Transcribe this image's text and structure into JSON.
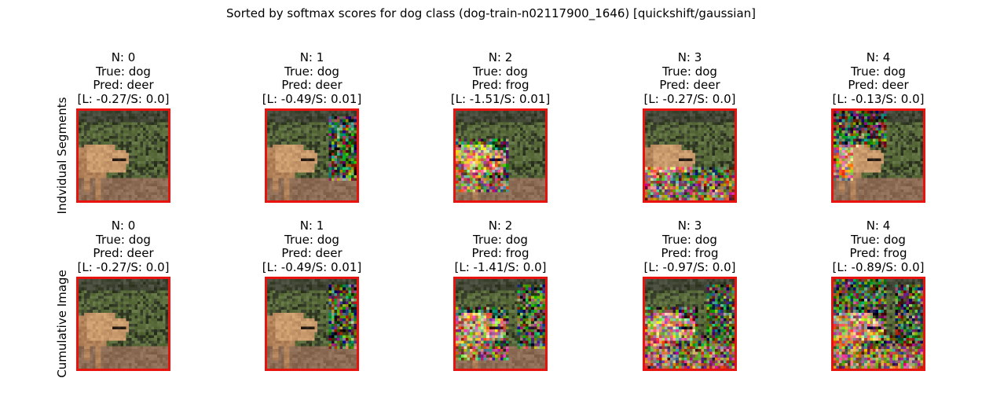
{
  "figure": {
    "title": "Sorted by softmax scores for dog class (dog-train-n02117900_1646) [quickshift/gaussian]"
  },
  "rows": [
    {
      "label": "Indvidual Segments",
      "panels": [
        {
          "n": "N: 0",
          "true": "True: dog",
          "pred": "Pred: deer",
          "score": "[L: -0.27/S: 0.0]",
          "noise": "none"
        },
        {
          "n": "N: 1",
          "true": "True: dog",
          "pred": "Pred: deer",
          "score": "[L: -0.49/S: 0.01]",
          "noise": "right"
        },
        {
          "n": "N: 2",
          "true": "True: dog",
          "pred": "Pred: frog",
          "score": "[L: -1.51/S: 0.01]",
          "noise": "left-body"
        },
        {
          "n": "N: 3",
          "true": "True: dog",
          "pred": "Pred: deer",
          "score": "[L: -0.27/S: 0.0]",
          "noise": "bottom"
        },
        {
          "n": "N: 4",
          "true": "True: dog",
          "pred": "Pred: deer",
          "score": "[L: -0.13/S: 0.0]",
          "noise": "top-left"
        }
      ]
    },
    {
      "label": "Cumulative Image",
      "panels": [
        {
          "n": "N: 0",
          "true": "True: dog",
          "pred": "Pred: deer",
          "score": "[L: -0.27/S: 0.0]",
          "noise": "none"
        },
        {
          "n": "N: 1",
          "true": "True: dog",
          "pred": "Pred: deer",
          "score": "[L: -0.49/S: 0.01]",
          "noise": "right"
        },
        {
          "n": "N: 2",
          "true": "True: dog",
          "pred": "Pred: frog",
          "score": "[L: -1.41/S: 0.0]",
          "noise": "right+left-body"
        },
        {
          "n": "N: 3",
          "true": "True: dog",
          "pred": "Pred: frog",
          "score": "[L: -0.97/S: 0.0]",
          "noise": "right+left-body+bottom"
        },
        {
          "n": "N: 4",
          "true": "True: dog",
          "pred": "Pred: frog",
          "score": "[L: -0.89/S: 0.0]",
          "noise": "all"
        }
      ]
    }
  ],
  "colors": {
    "frame": "#e8120f",
    "foliage_dark": "#3e4a2c",
    "foliage_mid": "#5c6e3a",
    "dog_fur": "#c99a6c",
    "ground": "#8a6c52"
  }
}
